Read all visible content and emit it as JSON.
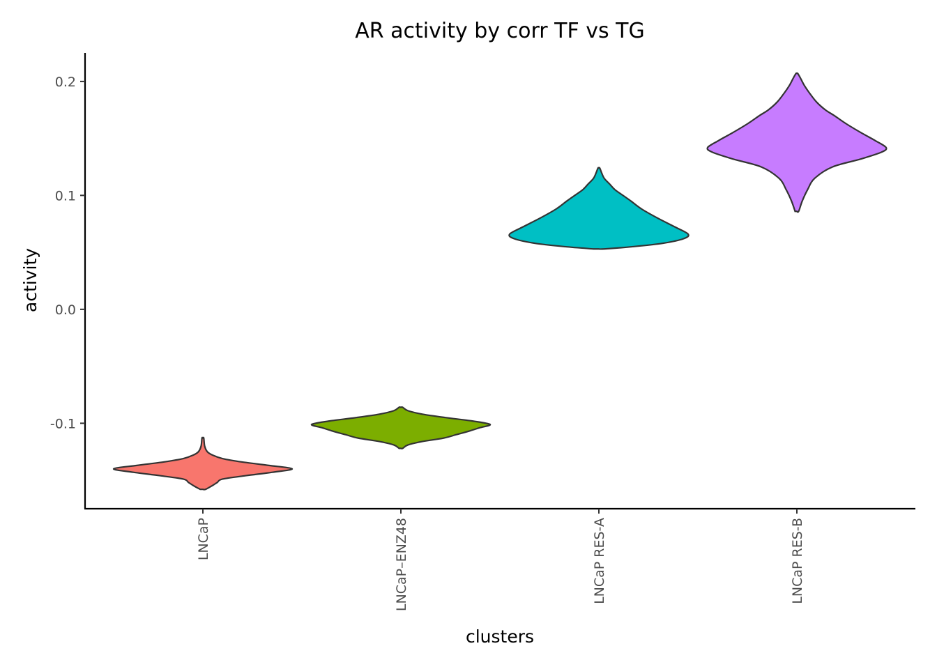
{
  "chart_data": {
    "type": "violin",
    "title": "AR activity by corr TF vs TG",
    "xlabel": "clusters",
    "ylabel": "activity",
    "ylim": [
      -0.175,
      0.225
    ],
    "yticks": [
      -0.1,
      0.0,
      0.1,
      0.2
    ],
    "ytick_labels": [
      "-0.1",
      "0.0",
      "0.1",
      "0.2"
    ],
    "categories": [
      "LNCaP",
      "LNCaP–ENZ48",
      "LNCaP RES-A",
      "LNCaP RES-B"
    ],
    "grid": false,
    "legend": "none",
    "series": [
      {
        "category": "LNCaP",
        "color": "#F8766D",
        "min": -0.158,
        "max": -0.113,
        "mode": -0.14,
        "density_profile": [
          [
            -0.158,
            0.03
          ],
          [
            -0.155,
            0.1
          ],
          [
            -0.152,
            0.16
          ],
          [
            -0.149,
            0.22
          ],
          [
            -0.146,
            0.48
          ],
          [
            -0.143,
            0.78
          ],
          [
            -0.14,
            1.0
          ],
          [
            -0.137,
            0.74
          ],
          [
            -0.134,
            0.44
          ],
          [
            -0.131,
            0.22
          ],
          [
            -0.128,
            0.11
          ],
          [
            -0.125,
            0.05
          ],
          [
            -0.12,
            0.02
          ],
          [
            -0.113,
            0.01
          ]
        ]
      },
      {
        "category": "LNCaP–ENZ48",
        "color": "#7CAE00",
        "min": -0.122,
        "max": -0.086,
        "mode": -0.1,
        "density_profile": [
          [
            -0.122,
            0.02
          ],
          [
            -0.119,
            0.08
          ],
          [
            -0.116,
            0.24
          ],
          [
            -0.113,
            0.48
          ],
          [
            -0.11,
            0.62
          ],
          [
            -0.107,
            0.76
          ],
          [
            -0.104,
            0.88
          ],
          [
            -0.101,
            1.0
          ],
          [
            -0.098,
            0.8
          ],
          [
            -0.095,
            0.5
          ],
          [
            -0.092,
            0.24
          ],
          [
            -0.089,
            0.08
          ],
          [
            -0.086,
            0.02
          ]
        ]
      },
      {
        "category": "LNCaP RES-A",
        "color": "#00BFC4",
        "min": 0.053,
        "max": 0.124,
        "mode": 0.066,
        "density_profile": [
          [
            0.053,
            0.06
          ],
          [
            0.055,
            0.38
          ],
          [
            0.058,
            0.72
          ],
          [
            0.062,
            0.95
          ],
          [
            0.066,
            1.0
          ],
          [
            0.072,
            0.86
          ],
          [
            0.08,
            0.66
          ],
          [
            0.088,
            0.48
          ],
          [
            0.095,
            0.36
          ],
          [
            0.1,
            0.27
          ],
          [
            0.105,
            0.18
          ],
          [
            0.11,
            0.12
          ],
          [
            0.115,
            0.06
          ],
          [
            0.12,
            0.03
          ],
          [
            0.124,
            0.01
          ]
        ]
      },
      {
        "category": "LNCaP RES-B",
        "color": "#C77CFF",
        "min": 0.086,
        "max": 0.207,
        "mode": 0.142,
        "density_profile": [
          [
            0.086,
            0.02
          ],
          [
            0.095,
            0.06
          ],
          [
            0.105,
            0.12
          ],
          [
            0.115,
            0.2
          ],
          [
            0.125,
            0.4
          ],
          [
            0.132,
            0.72
          ],
          [
            0.138,
            0.95
          ],
          [
            0.142,
            1.0
          ],
          [
            0.148,
            0.88
          ],
          [
            0.155,
            0.72
          ],
          [
            0.163,
            0.55
          ],
          [
            0.17,
            0.42
          ],
          [
            0.175,
            0.32
          ],
          [
            0.182,
            0.22
          ],
          [
            0.19,
            0.14
          ],
          [
            0.197,
            0.08
          ],
          [
            0.203,
            0.04
          ],
          [
            0.207,
            0.01
          ]
        ]
      }
    ]
  }
}
